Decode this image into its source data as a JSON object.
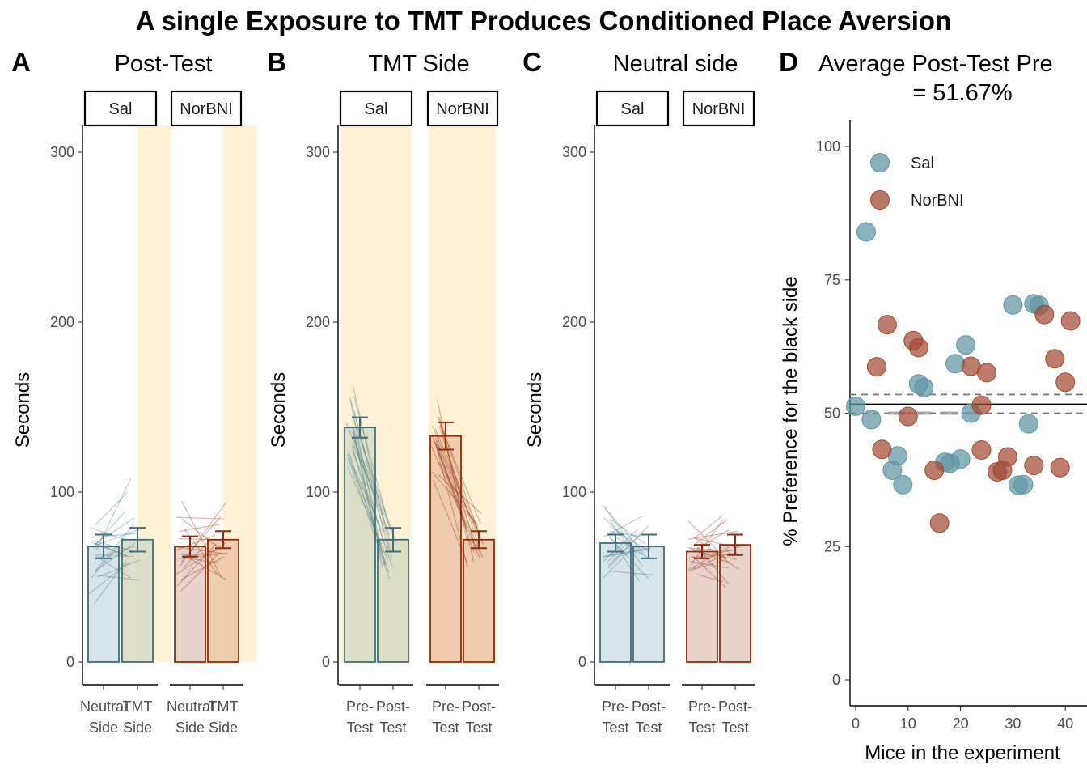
{
  "title": "A single Exposure to TMT Produces Conditioned Place Aversion",
  "colors": {
    "sal_line": "#3d6f7e",
    "sal_fill": "#d3e1e7",
    "sal_fill_alt": "#d9dcc4",
    "nor_line": "#8f2d0b",
    "nor_fill": "#e6cec6",
    "nor_fill_alt": "#ecc8a8",
    "highlight": "#fff1d6",
    "sal_point": "#5f95a4",
    "nor_point": "#a24b33"
  },
  "chart_data": [
    {
      "tag": "A",
      "type": "bar",
      "title": "Post-Test",
      "ylabel": "Seconds",
      "ylim": [
        0,
        300
      ],
      "yticks": [
        "0",
        "100",
        "200",
        "300"
      ],
      "facets": [
        {
          "label": "Sal",
          "categories": [
            "Neutral\nSide",
            "TMT\nSide"
          ],
          "values": [
            68,
            72
          ],
          "errors": [
            7,
            7
          ],
          "highlight": [
            false,
            true
          ]
        },
        {
          "label": "NorBNI",
          "categories": [
            "Neutral\nSide",
            "TMT\nSide"
          ],
          "values": [
            68,
            72
          ],
          "errors": [
            6,
            5
          ],
          "highlight": [
            false,
            true
          ]
        }
      ]
    },
    {
      "tag": "B",
      "type": "bar",
      "title": "TMT Side",
      "ylabel": "Seconds",
      "ylim": [
        0,
        300
      ],
      "yticks": [
        "0",
        "100",
        "200",
        "300"
      ],
      "facets": [
        {
          "label": "Sal",
          "categories": [
            "Pre-\nTest",
            "Post-\nTest"
          ],
          "values": [
            138,
            72
          ],
          "errors": [
            6,
            7
          ],
          "highlight": [
            true,
            true
          ]
        },
        {
          "label": "NorBNI",
          "categories": [
            "Pre-\nTest",
            "Post-\nTest"
          ],
          "values": [
            133,
            72
          ],
          "errors": [
            8,
            5
          ],
          "highlight": [
            true,
            true
          ]
        }
      ]
    },
    {
      "tag": "C",
      "type": "bar",
      "title": "Neutral side",
      "ylabel": "Seconds",
      "ylim": [
        0,
        300
      ],
      "yticks": [
        "0",
        "100",
        "200",
        "300"
      ],
      "facets": [
        {
          "label": "Sal",
          "categories": [
            "Pre-\nTest",
            "Post-\nTest"
          ],
          "values": [
            70,
            68
          ],
          "errors": [
            5,
            7
          ],
          "highlight": [
            false,
            false
          ]
        },
        {
          "label": "NorBNI",
          "categories": [
            "Pre-\nTest",
            "Post-\nTest"
          ],
          "values": [
            65,
            69
          ],
          "errors": [
            4,
            6
          ],
          "highlight": [
            false,
            false
          ]
        }
      ]
    },
    {
      "tag": "D",
      "type": "scatter",
      "title": "Average Post-Test Pre\n= 51.67%",
      "xlabel": "Mice in the experiment",
      "ylabel": "% Preference for the black side",
      "xlim": [
        -1,
        42
      ],
      "ylim": [
        0,
        100
      ],
      "xticks": [
        "0",
        "10",
        "20",
        "30",
        "40"
      ],
      "yticks": [
        "0",
        "25",
        "50",
        "75",
        "100"
      ],
      "mean_line": 51.67,
      "dashed_lines": [
        53.5,
        50
      ],
      "legend": {
        "position": "top-left",
        "entries": [
          "Sal",
          "NorBNI"
        ]
      },
      "series": [
        {
          "name": "Sal",
          "points": [
            [
              0,
              51.3
            ],
            [
              2,
              84
            ],
            [
              3,
              48.8
            ],
            [
              7,
              39.3
            ],
            [
              8,
              42
            ],
            [
              9,
              36.6
            ],
            [
              12,
              55.5
            ],
            [
              13,
              54.8
            ],
            [
              17,
              40.8
            ],
            [
              18,
              40.6
            ],
            [
              19,
              59.3
            ],
            [
              20,
              41.4
            ],
            [
              21,
              62.8
            ],
            [
              22,
              50
            ],
            [
              30,
              70.3
            ],
            [
              31,
              36.5
            ],
            [
              32,
              36.6
            ],
            [
              33,
              48
            ],
            [
              34,
              70.5
            ],
            [
              35,
              70.2
            ]
          ]
        },
        {
          "name": "NorBNI",
          "points": [
            [
              4,
              58.7
            ],
            [
              5,
              43.2
            ],
            [
              6,
              66.6
            ],
            [
              10,
              49.4
            ],
            [
              11,
              63.6
            ],
            [
              12,
              62.3
            ],
            [
              15,
              39.3
            ],
            [
              16,
              29.4
            ],
            [
              22,
              58.8
            ],
            [
              24,
              43.1
            ],
            [
              24,
              51.5
            ],
            [
              25,
              57.6
            ],
            [
              27,
              39
            ],
            [
              28,
              39.3
            ],
            [
              29,
              41.8
            ],
            [
              34,
              40.2
            ],
            [
              36,
              68.5
            ],
            [
              38,
              60.2
            ],
            [
              39,
              39.8
            ],
            [
              40,
              55.8
            ],
            [
              41,
              67.3
            ]
          ]
        }
      ]
    }
  ]
}
